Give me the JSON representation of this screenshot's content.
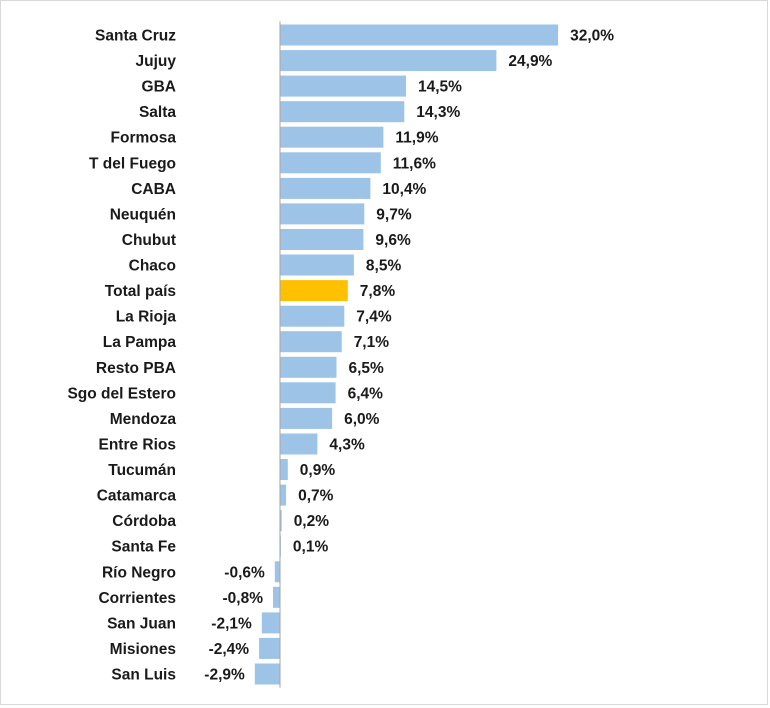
{
  "chart_data": {
    "type": "bar",
    "orientation": "horizontal",
    "categories": [
      "Santa Cruz",
      "Jujuy",
      "GBA",
      "Salta",
      "Formosa",
      "T del Fuego",
      "CABA",
      "Neuquén",
      "Chubut",
      "Chaco",
      "Total país",
      "La Rioja",
      "La Pampa",
      "Resto PBA",
      "Sgo del Estero",
      "Mendoza",
      "Entre Rios",
      "Tucumán",
      "Catamarca",
      "Córdoba",
      "Santa Fe",
      "Río Negro",
      "Corrientes",
      "San Juan",
      "Misiones",
      "San Luis"
    ],
    "values": [
      32.0,
      24.9,
      14.5,
      14.3,
      11.9,
      11.6,
      10.4,
      9.7,
      9.6,
      8.5,
      7.8,
      7.4,
      7.1,
      6.5,
      6.4,
      6.0,
      4.3,
      0.9,
      0.7,
      0.2,
      0.1,
      -0.6,
      -0.8,
      -2.1,
      -2.4,
      -2.9
    ],
    "data_labels": [
      "32,0%",
      "24,9%",
      "14,5%",
      "14,3%",
      "11,9%",
      "11,6%",
      "10,4%",
      "9,7%",
      "9,6%",
      "8,5%",
      "7,8%",
      "7,4%",
      "7,1%",
      "6,5%",
      "6,4%",
      "6,0%",
      "4,3%",
      "0,9%",
      "0,7%",
      "0,2%",
      "0,1%",
      "-0,6%",
      "-0,8%",
      "-2,1%",
      "-2,4%",
      "-2,9%"
    ],
    "highlight_category": "Total país",
    "colors": {
      "bar": "#9dc3e6",
      "highlight": "#ffc000",
      "axis": "#a6a6a6",
      "text": "#1a1a1a"
    },
    "title": "",
    "xlabel": "",
    "ylabel": "",
    "grid": false,
    "legend": "none"
  }
}
